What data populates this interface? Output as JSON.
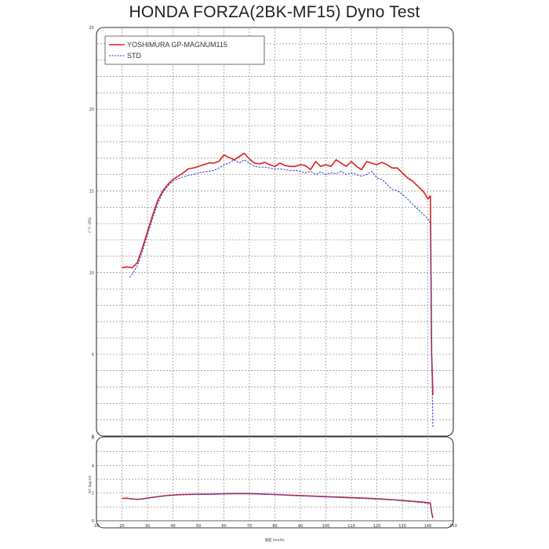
{
  "page": {
    "title": "HONDA FORZA(2BK-MF15) Dyno Test"
  },
  "colors": {
    "yoshimura": "#dd1f1f",
    "std": "#2b3fd6"
  },
  "chart_data": [
    {
      "type": "line",
      "ylabel": "ﾊﾟﾜｰ (PS)",
      "xlim": [
        20,
        143
      ],
      "ylim": [
        0,
        25
      ],
      "yticks": [
        0,
        5,
        10,
        15,
        20,
        25
      ],
      "xgrid": [
        20,
        30,
        40,
        50,
        60,
        70,
        80,
        90,
        100,
        110,
        120,
        130,
        140
      ],
      "grid": true,
      "legend_position": "top-left",
      "series": [
        {
          "name": "YOSHIMURA GP-MAGNUM115",
          "style": "solid",
          "x": [
            20,
            22,
            24,
            26,
            28,
            30,
            32,
            34,
            36,
            38,
            40,
            42,
            44,
            46,
            48,
            50,
            52,
            54,
            56,
            58,
            60,
            62,
            64,
            66,
            68,
            70,
            72,
            74,
            76,
            78,
            80,
            82,
            84,
            86,
            88,
            90,
            92,
            94,
            96,
            98,
            100,
            102,
            104,
            106,
            108,
            110,
            112,
            114,
            116,
            118,
            120,
            122,
            124,
            126,
            128,
            130,
            132,
            134,
            136,
            138,
            139,
            140,
            140.5,
            141,
            141.5,
            142
          ],
          "y": [
            10.3,
            10.35,
            10.3,
            10.6,
            11.5,
            12.5,
            13.5,
            14.4,
            15.0,
            15.4,
            15.7,
            15.9,
            16.1,
            16.35,
            16.4,
            16.5,
            16.6,
            16.7,
            16.7,
            16.8,
            17.2,
            17.05,
            16.9,
            17.1,
            17.3,
            16.95,
            16.7,
            16.65,
            16.75,
            16.6,
            16.5,
            16.7,
            16.55,
            16.5,
            16.5,
            16.6,
            16.55,
            16.3,
            16.8,
            16.5,
            16.6,
            16.5,
            16.9,
            16.7,
            16.5,
            16.8,
            16.5,
            16.3,
            16.8,
            16.7,
            16.6,
            16.75,
            16.6,
            16.4,
            16.4,
            16.1,
            15.8,
            15.6,
            15.3,
            15.0,
            14.8,
            14.5,
            14.6,
            14.7,
            5.0,
            2.5
          ]
        },
        {
          "name": "STD",
          "style": "dashed",
          "x": [
            23,
            24,
            26,
            28,
            30,
            32,
            34,
            36,
            38,
            40,
            42,
            44,
            46,
            48,
            50,
            52,
            54,
            56,
            58,
            60,
            62,
            64,
            66,
            68,
            70,
            72,
            74,
            76,
            78,
            80,
            82,
            84,
            86,
            88,
            90,
            92,
            94,
            96,
            98,
            100,
            102,
            104,
            106,
            108,
            110,
            112,
            114,
            116,
            118,
            120,
            122,
            124,
            126,
            128,
            130,
            132,
            134,
            136,
            138,
            140,
            141,
            141.5,
            142
          ],
          "y": [
            9.7,
            9.9,
            10.4,
            11.3,
            12.3,
            13.3,
            14.2,
            14.9,
            15.3,
            15.6,
            15.75,
            15.85,
            15.95,
            16.0,
            16.1,
            16.15,
            16.2,
            16.25,
            16.4,
            16.6,
            16.7,
            16.9,
            16.7,
            16.9,
            16.7,
            16.5,
            16.45,
            16.45,
            16.4,
            16.35,
            16.35,
            16.3,
            16.25,
            16.25,
            16.2,
            16.1,
            16.2,
            16.0,
            16.15,
            16.0,
            16.1,
            16.05,
            16.2,
            16.0,
            16.1,
            16.0,
            15.9,
            16.0,
            16.2,
            15.8,
            15.7,
            15.4,
            15.1,
            15.0,
            14.8,
            14.5,
            14.2,
            13.9,
            13.6,
            13.3,
            13.0,
            5.0,
            0.5
          ]
        }
      ]
    },
    {
      "type": "line",
      "ylabel": "ﾄﾙｸ (kg-m)",
      "xlabel": "速度 (km/h)",
      "xlim": [
        10,
        150
      ],
      "ylim": [
        0,
        6
      ],
      "yticks": [
        0,
        2,
        4,
        6
      ],
      "xticks": [
        10,
        20,
        30,
        40,
        50,
        60,
        70,
        80,
        90,
        100,
        110,
        120,
        130,
        140,
        150
      ],
      "grid": true,
      "series": [
        {
          "name": "YOSHIMURA GP-MAGNUM115",
          "style": "solid",
          "x": [
            20,
            22,
            24,
            26,
            28,
            30,
            34,
            38,
            42,
            46,
            50,
            54,
            58,
            62,
            66,
            70,
            74,
            78,
            82,
            86,
            90,
            94,
            98,
            102,
            106,
            110,
            114,
            118,
            122,
            126,
            130,
            134,
            138,
            140,
            141,
            141.5,
            142
          ],
          "y": [
            1.62,
            1.63,
            1.58,
            1.55,
            1.58,
            1.64,
            1.74,
            1.83,
            1.88,
            1.9,
            1.92,
            1.92,
            1.94,
            1.96,
            1.97,
            1.96,
            1.94,
            1.91,
            1.88,
            1.85,
            1.82,
            1.79,
            1.76,
            1.73,
            1.71,
            1.67,
            1.64,
            1.61,
            1.57,
            1.52,
            1.47,
            1.41,
            1.35,
            1.3,
            1.28,
            0.6,
            0.2
          ]
        },
        {
          "name": "STD",
          "style": "dashed",
          "x": [
            23,
            24,
            26,
            28,
            30,
            34,
            38,
            42,
            46,
            50,
            54,
            58,
            62,
            66,
            70,
            74,
            78,
            82,
            86,
            90,
            94,
            98,
            102,
            106,
            110,
            114,
            118,
            122,
            126,
            130,
            134,
            138,
            140,
            141,
            141.5,
            142
          ],
          "y": [
            1.58,
            1.56,
            1.54,
            1.56,
            1.62,
            1.73,
            1.81,
            1.86,
            1.88,
            1.9,
            1.91,
            1.92,
            1.94,
            1.95,
            1.94,
            1.92,
            1.9,
            1.87,
            1.83,
            1.79,
            1.76,
            1.73,
            1.7,
            1.67,
            1.64,
            1.61,
            1.58,
            1.54,
            1.5,
            1.44,
            1.38,
            1.31,
            1.25,
            1.22,
            0.5,
            0.1
          ]
        }
      ]
    }
  ]
}
